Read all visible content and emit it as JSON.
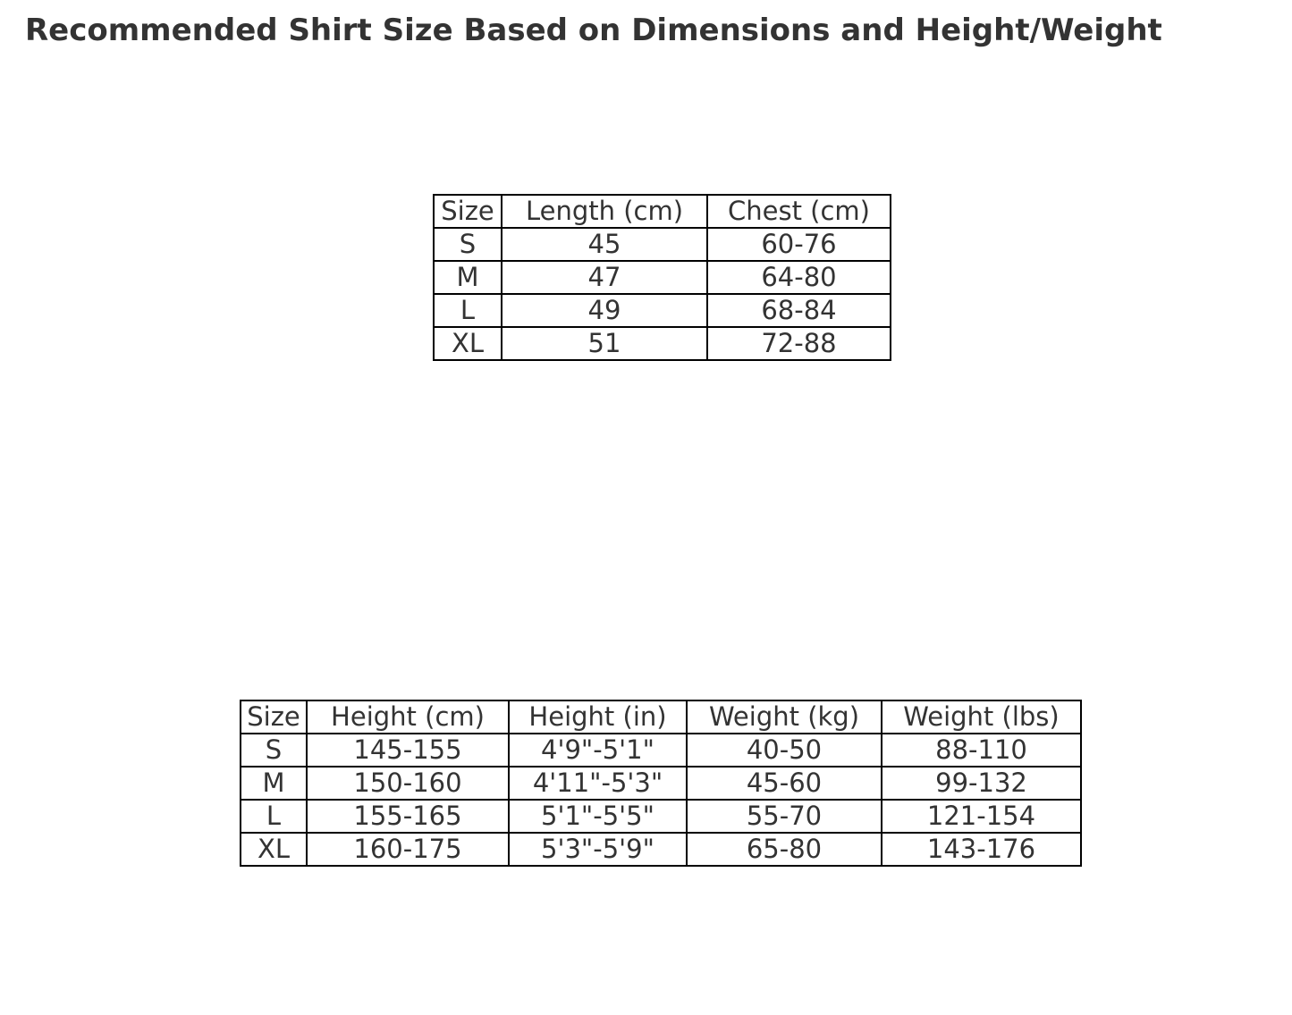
{
  "page": {
    "title": "Recommended Shirt Size Based on Dimensions and Height/Weight"
  },
  "colors": {
    "text": "#333333",
    "border": "#000000",
    "background": "#ffffff"
  },
  "chart_data": [
    {
      "type": "table",
      "name": "shirt-dimensions",
      "columns": [
        "Size",
        "Length (cm)",
        "Chest (cm)"
      ],
      "rows": [
        [
          "S",
          "45",
          "60-76"
        ],
        [
          "M",
          "47",
          "64-80"
        ],
        [
          "L",
          "49",
          "68-84"
        ],
        [
          "XL",
          "51",
          "72-88"
        ]
      ]
    },
    {
      "type": "table",
      "name": "height-weight",
      "columns": [
        "Size",
        "Height (cm)",
        "Height (in)",
        "Weight (kg)",
        "Weight (lbs)"
      ],
      "rows": [
        [
          "S",
          "145-155",
          "4'9\"-5'1\"",
          "40-50",
          "88-110"
        ],
        [
          "M",
          "150-160",
          "4'11\"-5'3\"",
          "45-60",
          "99-132"
        ],
        [
          "L",
          "155-165",
          "5'1\"-5'5\"",
          "55-70",
          "121-154"
        ],
        [
          "XL",
          "160-175",
          "5'3\"-5'9\"",
          "65-80",
          "143-176"
        ]
      ]
    }
  ]
}
